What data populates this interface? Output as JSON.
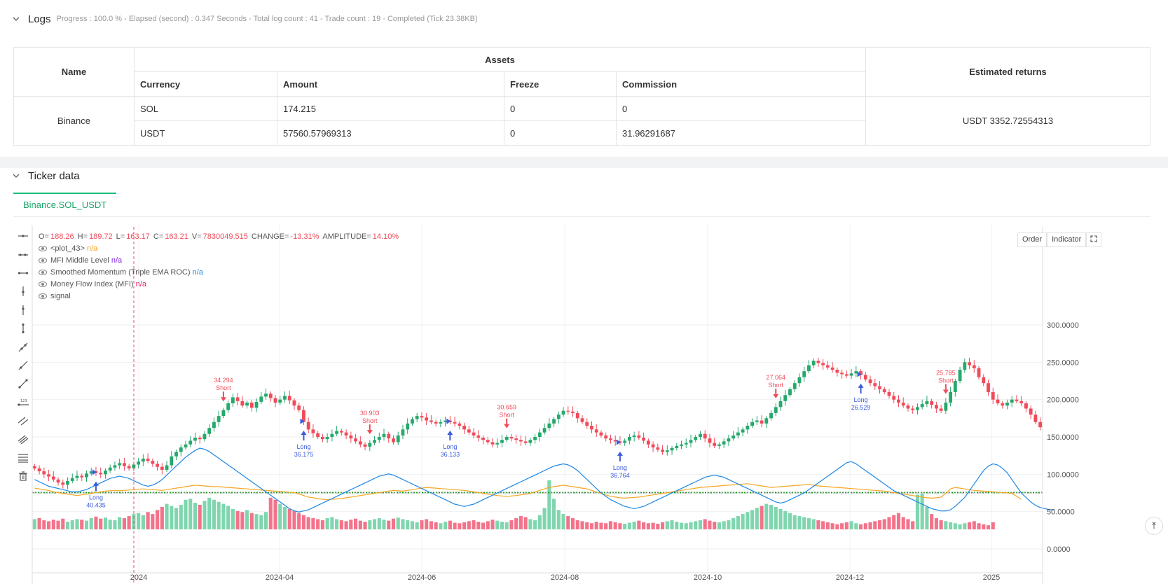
{
  "logs": {
    "title": "Logs",
    "status": "Progress : 100.0 % - Elapsed (second) : 0.347  Seconds - Total log count : 41 - Trade count : 19 - Completed (Tick 23.38KB)"
  },
  "assets_table": {
    "headers": {
      "name": "Name",
      "assets": "Assets",
      "estimated": "Estimated returns"
    },
    "sub_headers": [
      "Currency",
      "Amount",
      "Freeze",
      "Commission"
    ],
    "exchange": "Binance",
    "rows": [
      {
        "currency": "SOL",
        "amount": "174.215",
        "freeze": "0",
        "commission": "0"
      },
      {
        "currency": "USDT",
        "amount": "57560.57969313",
        "freeze": "0",
        "commission": "31.96291687"
      }
    ],
    "estimated_returns": "USDT 3352.72554313"
  },
  "ticker": {
    "title": "Ticker data",
    "tab": "Binance.SOL_USDT"
  },
  "chart_legend": {
    "ohlc": [
      {
        "k": "O=",
        "v": "188.26"
      },
      {
        "k": "H=",
        "v": "189.72"
      },
      {
        "k": "L=",
        "v": "163.17"
      },
      {
        "k": "C=",
        "v": "163.21"
      },
      {
        "k": "V=",
        "v": "7830049.515"
      },
      {
        "k": "CHANGE=",
        "v": "-13.31%"
      },
      {
        "k": "AMPLITUDE=",
        "v": "14.10%"
      }
    ],
    "indicators": [
      {
        "name": "<plot_43>",
        "value": "n/a",
        "color": "#f5a623"
      },
      {
        "name": "MFI Middle Level",
        "value": "n/a",
        "color": "#8a2be2"
      },
      {
        "name": "Smoothed Momentum (Triple EMA ROC)",
        "value": "n/a",
        "color": "#1e88e5"
      },
      {
        "name": "Money Flow Index (MFI)",
        "value": "n/a",
        "color": "#e91e63"
      },
      {
        "name": "signal",
        "value": "",
        "color": "#555555"
      }
    ]
  },
  "chart_buttons": {
    "order": "Order",
    "indicator": "Indicator"
  },
  "chart_data": {
    "type": "candlestick",
    "x_ticks": [
      "2024",
      "2024-04",
      "2024-06",
      "2024-08",
      "2024-10",
      "2024-12",
      "2025"
    ],
    "y_ticks": [
      "300.0000",
      "250.0000",
      "200.0000",
      "150.0000",
      "100.0000",
      "50.0000",
      "0.0000"
    ],
    "price_ylim": [
      0,
      300
    ],
    "closes": [
      108,
      104,
      100,
      97,
      93,
      89,
      86,
      91,
      95,
      98,
      96,
      101,
      104,
      102,
      100,
      105,
      109,
      112,
      115,
      111,
      108,
      113,
      117,
      121,
      118,
      114,
      110,
      106,
      112,
      124,
      130,
      136,
      140,
      145,
      149,
      147,
      154,
      162,
      170,
      178,
      186,
      195,
      203,
      198,
      192,
      196,
      189,
      197,
      204,
      208,
      202,
      196,
      200,
      205,
      199,
      192,
      186,
      170,
      160,
      155,
      150,
      147,
      150,
      154,
      158,
      156,
      152,
      148,
      144,
      140,
      137,
      142,
      146,
      150,
      154,
      148,
      143,
      152,
      160,
      168,
      174,
      178,
      176,
      172,
      170,
      168,
      170,
      172,
      170,
      168,
      165,
      160,
      156,
      152,
      149,
      146,
      143,
      140,
      142,
      146,
      150,
      148,
      146,
      144,
      142,
      146,
      150,
      156,
      162,
      168,
      174,
      180,
      185,
      184,
      182,
      175,
      170,
      165,
      160,
      156,
      152,
      148,
      146,
      144,
      142,
      145,
      150,
      152,
      149,
      145,
      140,
      136,
      133,
      130,
      132,
      135,
      138,
      140,
      142,
      146,
      150,
      154,
      148,
      142,
      138,
      140,
      144,
      148,
      152,
      156,
      160,
      165,
      170,
      172,
      168,
      175,
      182,
      190,
      198,
      206,
      214,
      222,
      230,
      238,
      246,
      252,
      249,
      246,
      243,
      240,
      236,
      234,
      232,
      235,
      238,
      233,
      227,
      222,
      218,
      214,
      210,
      205,
      200,
      196,
      192,
      188,
      186,
      190,
      194,
      198,
      193,
      188,
      185,
      196,
      210,
      225,
      240,
      250,
      246,
      242,
      230,
      222,
      210,
      200,
      195,
      192,
      196,
      200,
      198,
      195,
      188,
      180,
      170,
      163
    ],
    "volumes": [
      20,
      22,
      18,
      16,
      19,
      17,
      21,
      15,
      18,
      20,
      19,
      17,
      22,
      25,
      21,
      23,
      19,
      18,
      24,
      22,
      26,
      30,
      32,
      28,
      34,
      30,
      38,
      44,
      50,
      46,
      42,
      48,
      58,
      60,
      52,
      48,
      56,
      62,
      58,
      54,
      50,
      46,
      40,
      36,
      34,
      38,
      32,
      30,
      28,
      34,
      62,
      58,
      50,
      44,
      40,
      36,
      32,
      28,
      24,
      22,
      20,
      18,
      22,
      24,
      20,
      18,
      16,
      19,
      21,
      17,
      15,
      18,
      20,
      22,
      19,
      17,
      21,
      23,
      20,
      18,
      16,
      14,
      18,
      20,
      16,
      14,
      12,
      15,
      17,
      13,
      12,
      14,
      16,
      18,
      15,
      13,
      16,
      19,
      17,
      15,
      14,
      18,
      22,
      26,
      24,
      20,
      18,
      28,
      42,
      96,
      60,
      38,
      30,
      26,
      22,
      18,
      16,
      14,
      12,
      15,
      13,
      12,
      16,
      14,
      12,
      11,
      13,
      15,
      17,
      14,
      12,
      13,
      11,
      14,
      16,
      18,
      15,
      13,
      12,
      14,
      16,
      18,
      20,
      17,
      15,
      14,
      16,
      18,
      22,
      26,
      30,
      34,
      38,
      42,
      46,
      50,
      48,
      44,
      40,
      36,
      32,
      28,
      26,
      24,
      22,
      20,
      18,
      16,
      14,
      12,
      10,
      12,
      14,
      16,
      12,
      10,
      12,
      14,
      16,
      18,
      20,
      24,
      28,
      32,
      24,
      20,
      16,
      68,
      70,
      44,
      30,
      22,
      18,
      16,
      14,
      12,
      10,
      12,
      14,
      16,
      12,
      10,
      8,
      14
    ],
    "mfi": [
      62,
      60,
      58,
      56,
      52,
      50,
      48,
      46,
      44,
      42,
      44,
      46,
      48,
      50,
      52,
      54,
      55,
      56,
      55,
      56,
      57,
      58,
      59,
      60,
      59,
      58,
      57,
      56,
      58,
      60,
      62,
      64,
      66,
      68,
      70,
      69,
      68,
      67,
      66,
      66,
      65,
      64,
      63,
      62,
      61,
      60,
      59,
      58,
      57,
      56,
      55,
      54,
      53,
      52,
      51,
      50,
      46,
      42,
      38,
      36,
      34,
      32,
      31,
      32,
      33,
      34,
      36,
      38,
      40,
      42,
      44,
      46,
      48,
      50,
      52,
      54,
      56,
      55,
      54,
      56,
      58,
      60,
      62,
      64,
      63,
      62,
      61,
      60,
      59,
      58,
      57,
      56,
      54,
      52,
      50,
      48,
      46,
      44,
      42,
      41,
      40,
      41,
      42,
      44,
      46,
      48,
      52,
      56,
      60,
      64,
      66,
      68,
      70,
      68,
      66,
      64,
      62,
      60,
      56,
      52,
      48,
      44,
      40,
      38,
      36,
      35,
      36,
      37,
      38,
      40,
      42,
      44,
      46,
      48,
      50,
      52,
      54,
      56,
      58,
      60,
      62,
      64,
      65,
      66,
      67,
      68,
      69,
      70,
      71,
      72,
      73,
      74,
      72,
      70,
      68,
      66,
      64,
      65,
      66,
      67,
      68,
      69,
      70,
      71,
      72,
      70,
      68,
      67,
      66,
      65,
      64,
      63,
      62,
      61,
      60,
      59,
      58,
      57,
      56,
      55,
      54,
      52,
      50,
      48,
      46,
      44,
      42,
      40,
      38,
      36,
      35,
      36,
      38,
      48,
      60,
      64,
      62,
      60,
      58,
      56,
      55,
      54,
      53,
      52,
      51,
      50,
      49,
      48,
      40,
      32
    ],
    "momentum": [
      12,
      10,
      8,
      6,
      5,
      4,
      3,
      2,
      1,
      1,
      2,
      3,
      5,
      7,
      9,
      11,
      13,
      14,
      15,
      14,
      13,
      11,
      9,
      7,
      6,
      7,
      9,
      12,
      16,
      20,
      24,
      28,
      32,
      35,
      38,
      40,
      39,
      37,
      34,
      31,
      28,
      25,
      22,
      19,
      16,
      13,
      10,
      7,
      4,
      1,
      -2,
      -5,
      -8,
      -11,
      -14,
      -16,
      -17,
      -16,
      -15,
      -13,
      -11,
      -9,
      -7,
      -5,
      -3,
      -1,
      1,
      3,
      5,
      7,
      9,
      11,
      13,
      15,
      16,
      17,
      16,
      14,
      12,
      10,
      8,
      6,
      4,
      2,
      0,
      -2,
      -4,
      -6,
      -8,
      -10,
      -11,
      -12,
      -11,
      -10,
      -8,
      -6,
      -4,
      -2,
      0,
      2,
      4,
      6,
      8,
      10,
      12,
      14,
      16,
      18,
      20,
      22,
      24,
      25,
      26,
      25,
      23,
      20,
      16,
      12,
      8,
      4,
      0,
      -3,
      -6,
      -8,
      -10,
      -12,
      -13,
      -14,
      -13,
      -12,
      -10,
      -8,
      -6,
      -4,
      -2,
      0,
      2,
      4,
      6,
      8,
      10,
      12,
      14,
      15,
      16,
      15,
      14,
      12,
      10,
      8,
      6,
      4,
      2,
      0,
      -2,
      -4,
      -6,
      -8,
      -9,
      -8,
      -6,
      -4,
      -2,
      0,
      3,
      6,
      9,
      12,
      15,
      18,
      21,
      24,
      27,
      28,
      26,
      23,
      20,
      17,
      14,
      11,
      8,
      5,
      2,
      0,
      -2,
      -4,
      -6,
      -8,
      -10,
      -12,
      -14,
      -15,
      -16,
      -16,
      -15,
      -12,
      -8,
      -4,
      2,
      8,
      14,
      20,
      24,
      26,
      25,
      22,
      18,
      12,
      6,
      0,
      -4,
      -8,
      -11,
      -13,
      -14,
      -15,
      -15
    ],
    "mfi_middle_level": 50,
    "signals": [
      {
        "type": "Long",
        "value": "40.435",
        "index": 13
      },
      {
        "type": "Short",
        "value": "34.294",
        "index": 40
      },
      {
        "type": "Long",
        "value": "36.175",
        "index": 57
      },
      {
        "type": "Short",
        "value": "30.903",
        "index": 71
      },
      {
        "type": "Long",
        "value": "36.133",
        "index": 88
      },
      {
        "type": "Short",
        "value": "30.659",
        "index": 100
      },
      {
        "type": "Long",
        "value": "36.764",
        "index": 124
      },
      {
        "type": "Short",
        "value": "27.064",
        "index": 157
      },
      {
        "type": "Long",
        "value": "26.529",
        "index": 175
      },
      {
        "type": "Short",
        "value": "25.785",
        "index": 193
      }
    ]
  }
}
